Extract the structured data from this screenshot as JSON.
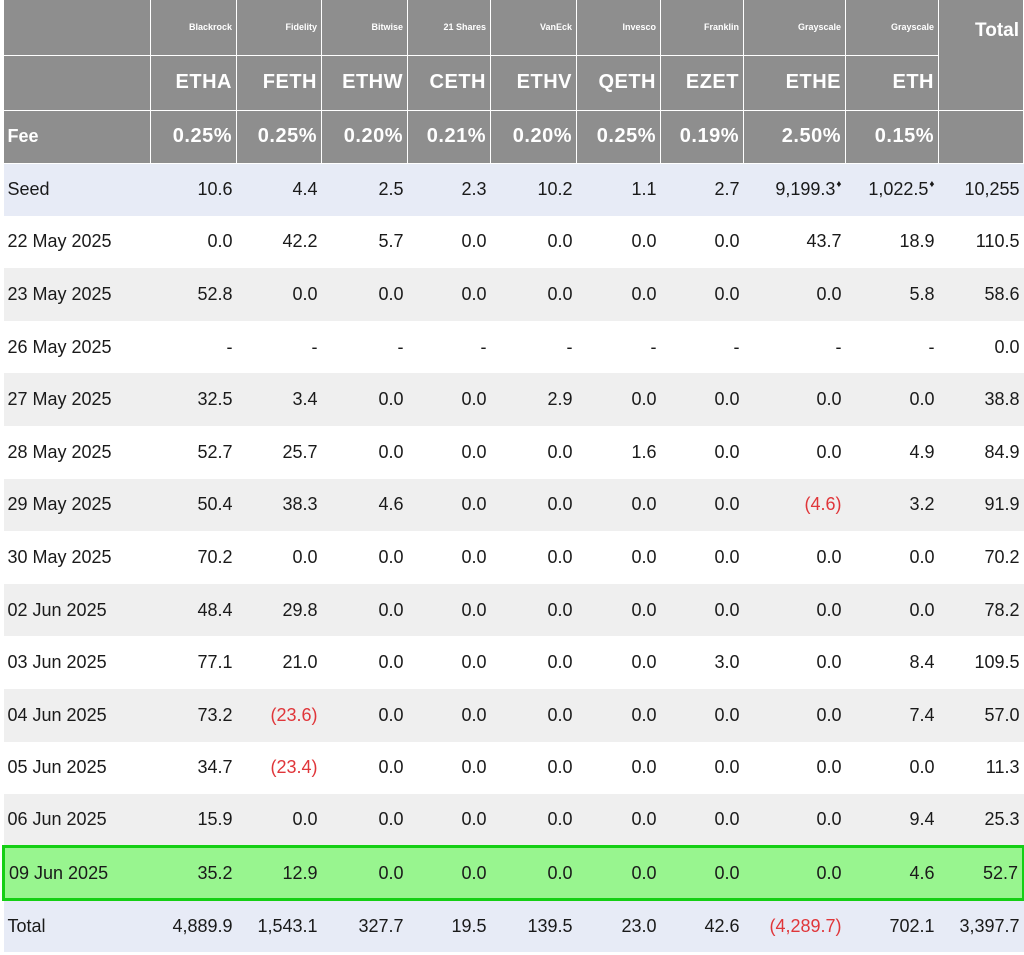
{
  "issuers": [
    "Blackrock",
    "Fidelity",
    "Bitwise",
    "21 Shares",
    "VanEck",
    "Invesco",
    "Franklin",
    "Grayscale",
    "Grayscale"
  ],
  "tickers": [
    "ETHA",
    "FETH",
    "ETHW",
    "CETH",
    "ETHV",
    "QETH",
    "EZET",
    "ETHE",
    "ETH"
  ],
  "fee_label": "Fee",
  "fees": [
    "0.25%",
    "0.25%",
    "0.20%",
    "0.21%",
    "0.20%",
    "0.25%",
    "0.19%",
    "2.50%",
    "0.15%"
  ],
  "total_header": "Total",
  "colors": {
    "header_bg": "#8e8e8e",
    "negative": "#e0363a",
    "highlight_bg": "#98f58f",
    "highlight_border": "#14cf14",
    "seed_total_bg": "#e7ebf6"
  },
  "rows": [
    {
      "label": "Seed",
      "values": [
        "10.6",
        "4.4",
        "2.5",
        "2.3",
        "10.2",
        "1.1",
        "2.7",
        "9,199.3",
        "1,022.5",
        "10,255"
      ],
      "marked": [
        7,
        8
      ],
      "style": "seed"
    },
    {
      "label": "22 May 2025",
      "values": [
        "0.0",
        "42.2",
        "5.7",
        "0.0",
        "0.0",
        "0.0",
        "0.0",
        "43.7",
        "18.9",
        "110.5"
      ],
      "style": "plain"
    },
    {
      "label": "23 May 2025",
      "values": [
        "52.8",
        "0.0",
        "0.0",
        "0.0",
        "0.0",
        "0.0",
        "0.0",
        "0.0",
        "5.8",
        "58.6"
      ],
      "style": "alt"
    },
    {
      "label": "26 May 2025",
      "values": [
        "-",
        "-",
        "-",
        "-",
        "-",
        "-",
        "-",
        "-",
        "-",
        "0.0"
      ],
      "style": "plain"
    },
    {
      "label": "27 May 2025",
      "values": [
        "32.5",
        "3.4",
        "0.0",
        "0.0",
        "2.9",
        "0.0",
        "0.0",
        "0.0",
        "0.0",
        "38.8"
      ],
      "style": "alt"
    },
    {
      "label": "28 May 2025",
      "values": [
        "52.7",
        "25.7",
        "0.0",
        "0.0",
        "0.0",
        "1.6",
        "0.0",
        "0.0",
        "4.9",
        "84.9"
      ],
      "style": "plain"
    },
    {
      "label": "29 May 2025",
      "values": [
        "50.4",
        "38.3",
        "4.6",
        "0.0",
        "0.0",
        "0.0",
        "0.0",
        "(4.6)",
        "3.2",
        "91.9"
      ],
      "style": "alt"
    },
    {
      "label": "30 May 2025",
      "values": [
        "70.2",
        "0.0",
        "0.0",
        "0.0",
        "0.0",
        "0.0",
        "0.0",
        "0.0",
        "0.0",
        "70.2"
      ],
      "style": "plain"
    },
    {
      "label": "02 Jun 2025",
      "values": [
        "48.4",
        "29.8",
        "0.0",
        "0.0",
        "0.0",
        "0.0",
        "0.0",
        "0.0",
        "0.0",
        "78.2"
      ],
      "style": "alt"
    },
    {
      "label": "03 Jun 2025",
      "values": [
        "77.1",
        "21.0",
        "0.0",
        "0.0",
        "0.0",
        "0.0",
        "3.0",
        "0.0",
        "8.4",
        "109.5"
      ],
      "style": "plain"
    },
    {
      "label": "04 Jun 2025",
      "values": [
        "73.2",
        "(23.6)",
        "0.0",
        "0.0",
        "0.0",
        "0.0",
        "0.0",
        "0.0",
        "7.4",
        "57.0"
      ],
      "style": "alt"
    },
    {
      "label": "05 Jun 2025",
      "values": [
        "34.7",
        "(23.4)",
        "0.0",
        "0.0",
        "0.0",
        "0.0",
        "0.0",
        "0.0",
        "0.0",
        "11.3"
      ],
      "style": "plain"
    },
    {
      "label": "06 Jun 2025",
      "values": [
        "15.9",
        "0.0",
        "0.0",
        "0.0",
        "0.0",
        "0.0",
        "0.0",
        "0.0",
        "9.4",
        "25.3"
      ],
      "style": "alt"
    },
    {
      "label": "09 Jun 2025",
      "values": [
        "35.2",
        "12.9",
        "0.0",
        "0.0",
        "0.0",
        "0.0",
        "0.0",
        "0.0",
        "4.6",
        "52.7"
      ],
      "style": "highlight"
    },
    {
      "label": "Total",
      "values": [
        "4,889.9",
        "1,543.1",
        "327.7",
        "19.5",
        "139.5",
        "23.0",
        "42.6",
        "(4,289.7)",
        "702.1",
        "3,397.7"
      ],
      "style": "total-row"
    }
  ]
}
